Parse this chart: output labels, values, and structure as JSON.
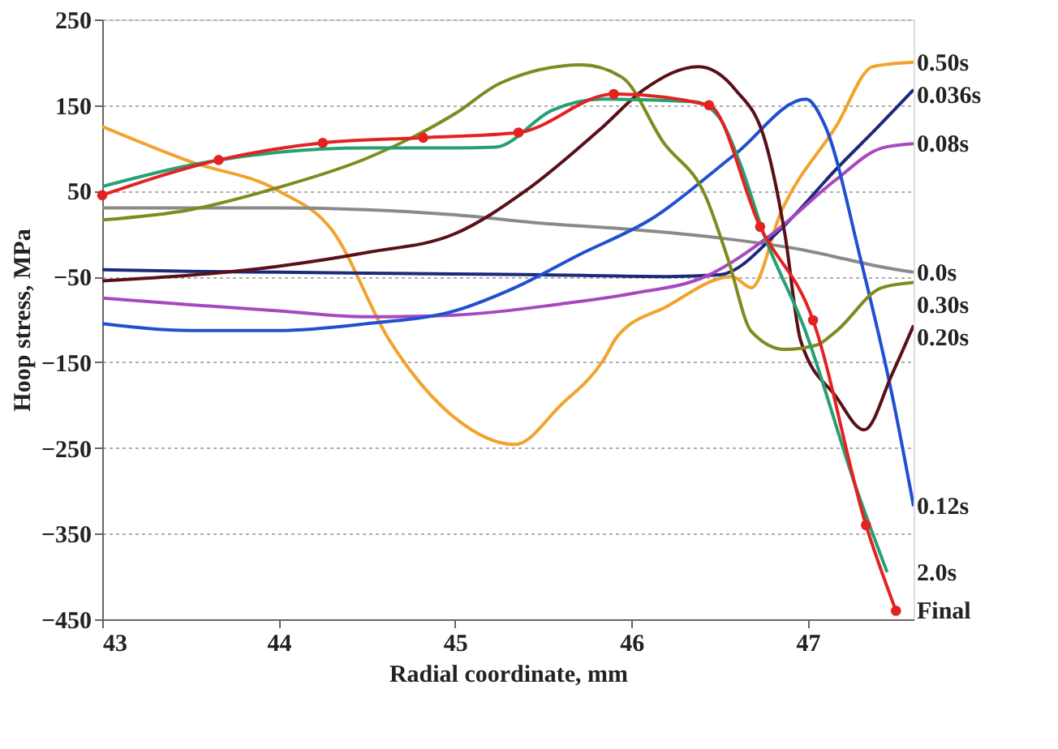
{
  "chart_data": {
    "type": "line",
    "xlabel": "Radial coordinate, mm",
    "ylabel": "Hoop stress, MPa",
    "xlim": [
      43,
      47.6
    ],
    "ylim": [
      -450,
      250
    ],
    "xticks": [
      43,
      44,
      45,
      46,
      47
    ],
    "yticks": [
      -450,
      -350,
      -250,
      -150,
      -50,
      50,
      150,
      250
    ],
    "grid": "y",
    "marker": "none",
    "line_style": "solid",
    "series": [
      {
        "name": "0.50s",
        "color": "#f2a32c",
        "x": [
          43,
          43.5,
          44,
          44.3,
          44.63,
          45,
          45.34,
          45.6,
          45.84,
          45.92,
          46.2,
          46.57,
          46.68,
          46.85,
          47.16,
          47.37,
          47.6
        ],
        "values": [
          125,
          84,
          50,
          5,
          -125,
          -215,
          -246,
          -200,
          -148,
          -120,
          -85,
          -50,
          -63,
          26,
          125,
          195,
          200
        ]
      },
      {
        "name": "0.0s",
        "color": "#8a8a8a",
        "x": [
          43,
          44,
          44.5,
          45,
          45.5,
          46,
          46.5,
          47,
          47.2,
          47.4,
          47.6
        ],
        "values": [
          30,
          30,
          28,
          22,
          12,
          5,
          -5,
          -20,
          -29,
          -38,
          -45
        ]
      },
      {
        "name": "0.036s",
        "color": "#1c2a7a",
        "x": [
          43,
          43.5,
          44,
          45,
          45.5,
          46.2,
          46.5,
          46.85,
          47.16,
          47.4,
          47.6
        ],
        "values": [
          -42,
          -44,
          -45,
          -47,
          -48,
          -50,
          -48,
          6,
          75,
          125,
          168
        ]
      },
      {
        "name": "0.08s",
        "color": "#a848c0",
        "x": [
          43,
          43.5,
          44,
          44.5,
          45,
          45.6,
          46,
          46.42,
          46.8,
          47.16,
          47.42,
          47.6
        ],
        "values": [
          -75,
          -83,
          -90,
          -97,
          -95,
          -82,
          -70,
          -50,
          0,
          63,
          100,
          105
        ]
      },
      {
        "name": "0.12s",
        "color": "#2050d0",
        "x": [
          43,
          43.5,
          44,
          44.5,
          45,
          45.34,
          45.7,
          46.12,
          46.59,
          46.99,
          47.1,
          47.3,
          47.48,
          47.6
        ],
        "values": [
          -105,
          -113,
          -113,
          -105,
          -90,
          -63,
          -25,
          18,
          93,
          157,
          125,
          -30,
          -190,
          -318
        ]
      },
      {
        "name": "0.20s",
        "color": "#5a1018",
        "x": [
          43,
          44,
          44.5,
          45,
          45.4,
          45.84,
          46.07,
          46.38,
          46.59,
          46.76,
          46.87,
          46.96,
          47.16,
          47.32,
          47.48,
          47.6
        ],
        "values": [
          -55,
          -38,
          -22,
          0,
          50,
          125,
          168,
          195,
          168,
          107,
          0,
          -125,
          -190,
          -229,
          -163,
          -107
        ]
      },
      {
        "name": "0.30s",
        "color": "#7f8a20",
        "x": [
          43,
          43.5,
          44,
          44.5,
          45,
          45.26,
          45.72,
          45.95,
          46.18,
          46.42,
          46.55,
          46.68,
          46.87,
          47.05,
          47.16,
          47.42,
          47.6
        ],
        "values": [
          16,
          28,
          54,
          88,
          140,
          176,
          197,
          182,
          107,
          44,
          -31,
          -114,
          -135,
          -130,
          -114,
          -63,
          -57
        ]
      },
      {
        "name": "2.0s",
        "color": "#25a070",
        "x": [
          43,
          43.5,
          44,
          44.5,
          45,
          45.23,
          45.55,
          45.84,
          46.36,
          46.5,
          46.62,
          46.75,
          46.98,
          47.28,
          47.45
        ],
        "values": [
          55,
          80,
          95,
          100,
          100,
          101,
          144,
          157,
          154,
          135,
          80,
          0,
          -110,
          -300,
          -395
        ]
      },
      {
        "name": "Final",
        "color": "#e42222",
        "marker": "circle",
        "x": [
          43,
          43.66,
          44.25,
          44.82,
          45.36,
          45.9,
          46.44,
          46.73,
          47.03,
          47.33,
          47.5
        ],
        "values": [
          45,
          86,
          106,
          112,
          118,
          163,
          150,
          8,
          -101,
          -340,
          -440
        ]
      }
    ]
  }
}
